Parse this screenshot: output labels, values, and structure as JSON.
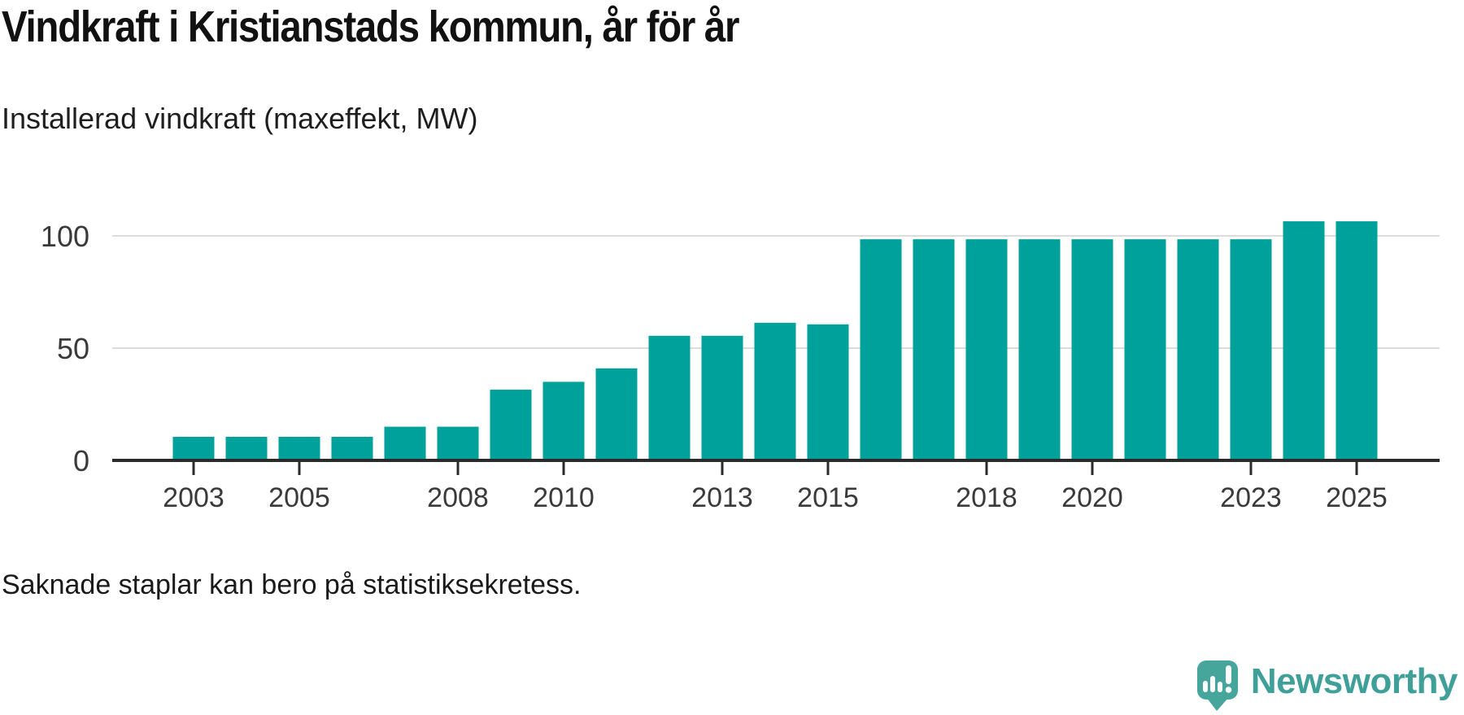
{
  "page": {
    "title": "Vindkraft i Kristianstads kommun, år för år",
    "subtitle": "Installerad vindkraft (maxeffekt, MW)",
    "footnote": "Saknade staplar kan bero på statistiksekretess."
  },
  "chart_data": {
    "type": "bar",
    "title": "Vindkraft i Kristianstads kommun, år för år",
    "subtitle": "Installerad vindkraft (maxeffekt, MW)",
    "xlabel": "",
    "ylabel": "Installerad vindkraft (maxeffekt, MW)",
    "categories": [
      2003,
      2004,
      2005,
      2006,
      2007,
      2008,
      2009,
      2010,
      2011,
      2012,
      2013,
      2014,
      2015,
      2016,
      2017,
      2018,
      2019,
      2020,
      2021,
      2022,
      2023,
      2024,
      2025
    ],
    "values": [
      10.5,
      10.5,
      10.5,
      10.5,
      15,
      15,
      31.5,
      35,
      41,
      55.5,
      55.5,
      61.3,
      60.6,
      98.5,
      98.5,
      98.5,
      98.5,
      98.5,
      98.5,
      98.5,
      98.5,
      106.5,
      106.5
    ],
    "yticks": [
      0,
      50,
      100
    ],
    "xtick_labels": [
      "2003",
      "2005",
      "2008",
      "2010",
      "2013",
      "2015",
      "2018",
      "2020",
      "2023",
      "2025"
    ],
    "ylim": [
      0,
      122
    ],
    "grid": "horizontal",
    "legend_position": "none",
    "bar_color": "#00A09B"
  },
  "branding": {
    "logo_text": "Newsworthy",
    "logo_icon": "newsworthy-speech-bubble-chart-icon",
    "brand_color": "#3FA099"
  },
  "colors": {
    "bar": "#00A09B",
    "axis": "#2b2b2b",
    "grid": "#dcdcdc",
    "tick_label": "#3a3a3a",
    "text": "#1a1a1a"
  }
}
